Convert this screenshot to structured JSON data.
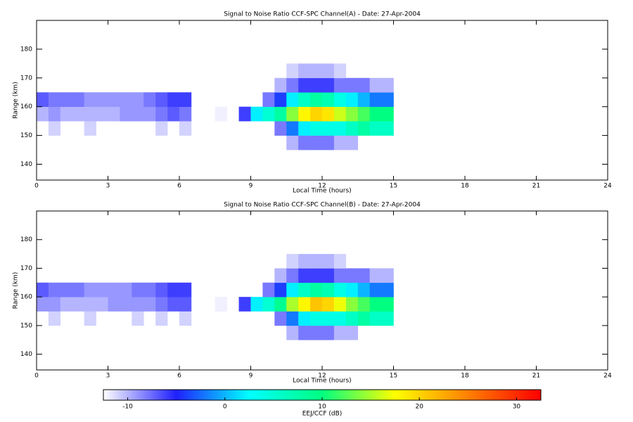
{
  "chart_data": [
    {
      "type": "heatmap",
      "title": "Signal to Noise Ratio CCF-SPC Channel(A) - Date: 27-Apr-2004",
      "xlabel": "Local Time (hours)",
      "ylabel": "Range (km)",
      "xlim": [
        0,
        24
      ],
      "xticks": [
        0,
        3,
        6,
        9,
        12,
        15,
        18,
        21,
        24
      ],
      "ylim": [
        134.5,
        190
      ],
      "yticks": [
        140,
        150,
        160,
        170,
        180
      ],
      "xbins": [
        0,
        0.5,
        1,
        1.5,
        2,
        2.5,
        3,
        3.5,
        4,
        4.5,
        5,
        5.5,
        6,
        6.5,
        7,
        7.5,
        8,
        8.5,
        9,
        9.5,
        10,
        10.5,
        11,
        11.5,
        12,
        12.5,
        13,
        13.5,
        14,
        14.5,
        15
      ],
      "ybins": [
        135,
        140,
        145,
        150,
        155,
        160,
        165,
        170,
        175,
        180,
        185,
        190
      ],
      "z": [
        [
          null,
          null,
          null,
          null,
          null,
          null,
          null,
          null,
          null,
          null,
          null,
          null,
          null,
          null,
          null,
          null,
          null,
          null,
          null,
          null,
          null,
          null,
          null,
          null,
          null,
          null,
          null,
          null,
          null,
          null
        ],
        [
          null,
          null,
          null,
          null,
          null,
          null,
          null,
          null,
          null,
          null,
          null,
          null,
          null,
          null,
          null,
          null,
          null,
          null,
          null,
          null,
          null,
          null,
          null,
          null,
          null,
          null,
          null,
          null,
          null,
          null
        ],
        [
          null,
          null,
          null,
          null,
          null,
          null,
          null,
          null,
          null,
          null,
          null,
          null,
          null,
          null,
          null,
          null,
          null,
          null,
          null,
          null,
          null,
          -10,
          -8,
          -8,
          -8,
          -10,
          -10,
          null,
          null,
          null
        ],
        [
          null,
          -11,
          null,
          null,
          -11,
          null,
          null,
          null,
          null,
          null,
          -11,
          null,
          -11,
          null,
          null,
          null,
          null,
          null,
          null,
          null,
          -8,
          -2,
          2,
          4,
          4,
          4,
          6,
          8,
          6,
          6
        ],
        [
          -10,
          -9,
          -10,
          -10,
          -10,
          -10,
          -10,
          -9,
          -9,
          -9,
          -8,
          -7,
          -8,
          null,
          null,
          -12,
          null,
          -6,
          2,
          5,
          8,
          14,
          18,
          20,
          19,
          16,
          14,
          12,
          10,
          10
        ],
        [
          -7,
          -8,
          -8,
          -8,
          -9,
          -9,
          -9,
          -9,
          -9,
          -8,
          -7,
          -6,
          -6,
          null,
          null,
          null,
          null,
          null,
          null,
          -8,
          -4,
          2,
          6,
          8,
          7,
          4,
          2,
          0,
          -2,
          -2
        ],
        [
          null,
          null,
          null,
          null,
          null,
          null,
          null,
          null,
          null,
          null,
          null,
          null,
          null,
          null,
          null,
          null,
          null,
          null,
          null,
          null,
          -10,
          -8,
          -6,
          -6,
          -6,
          -8,
          -8,
          -8,
          -10,
          -10
        ],
        [
          null,
          null,
          null,
          null,
          null,
          null,
          null,
          null,
          null,
          null,
          null,
          null,
          null,
          null,
          null,
          null,
          null,
          null,
          null,
          null,
          null,
          -11,
          -10,
          -10,
          -10,
          -11,
          null,
          null,
          null,
          null
        ],
        [
          null,
          null,
          null,
          null,
          null,
          null,
          null,
          null,
          null,
          null,
          null,
          null,
          null,
          null,
          null,
          null,
          null,
          null,
          null,
          null,
          null,
          null,
          null,
          null,
          null,
          null,
          null,
          null,
          null,
          null
        ],
        [
          null,
          null,
          null,
          null,
          null,
          null,
          null,
          null,
          null,
          null,
          null,
          null,
          null,
          null,
          null,
          null,
          null,
          null,
          null,
          null,
          null,
          null,
          null,
          null,
          null,
          null,
          null,
          null,
          null,
          null
        ],
        [
          null,
          null,
          null,
          null,
          null,
          null,
          null,
          null,
          null,
          null,
          null,
          null,
          null,
          null,
          null,
          null,
          null,
          null,
          null,
          null,
          null,
          null,
          null,
          null,
          null,
          null,
          null,
          null,
          null,
          null
        ]
      ]
    },
    {
      "type": "heatmap",
      "title": "Signal to Noise Ratio CCF-SPC Channel(B) - Date: 27-Apr-2004",
      "xlabel": "Local Time (hours)",
      "ylabel": "Range (km)",
      "xlim": [
        0,
        24
      ],
      "xticks": [
        0,
        3,
        6,
        9,
        12,
        15,
        18,
        21,
        24
      ],
      "ylim": [
        134.5,
        190
      ],
      "yticks": [
        140,
        150,
        160,
        170,
        180
      ],
      "xbins": [
        0,
        0.5,
        1,
        1.5,
        2,
        2.5,
        3,
        3.5,
        4,
        4.5,
        5,
        5.5,
        6,
        6.5,
        7,
        7.5,
        8,
        8.5,
        9,
        9.5,
        10,
        10.5,
        11,
        11.5,
        12,
        12.5,
        13,
        13.5,
        14,
        14.5,
        15
      ],
      "ybins": [
        135,
        140,
        145,
        150,
        155,
        160,
        165,
        170,
        175,
        180,
        185,
        190
      ],
      "z": [
        [
          null,
          null,
          null,
          null,
          null,
          null,
          null,
          null,
          null,
          null,
          null,
          null,
          null,
          null,
          null,
          null,
          null,
          null,
          null,
          null,
          null,
          null,
          null,
          null,
          null,
          null,
          null,
          null,
          null,
          null
        ],
        [
          null,
          null,
          null,
          null,
          null,
          null,
          null,
          null,
          null,
          null,
          null,
          null,
          null,
          null,
          null,
          null,
          null,
          null,
          null,
          null,
          null,
          null,
          null,
          null,
          null,
          null,
          null,
          null,
          null,
          null
        ],
        [
          null,
          null,
          null,
          null,
          null,
          null,
          null,
          null,
          null,
          null,
          null,
          null,
          null,
          null,
          null,
          null,
          null,
          null,
          null,
          null,
          null,
          -10,
          -8,
          -8,
          -8,
          -10,
          -10,
          null,
          null,
          null
        ],
        [
          null,
          -11,
          null,
          null,
          -11,
          null,
          null,
          null,
          -11,
          null,
          -11,
          null,
          -11,
          null,
          null,
          null,
          null,
          null,
          null,
          null,
          -8,
          -2,
          2,
          4,
          4,
          4,
          6,
          8,
          6,
          6
        ],
        [
          -9,
          -9,
          -10,
          -10,
          -10,
          -10,
          -9,
          -9,
          -9,
          -9,
          -8,
          -7,
          -7,
          null,
          null,
          -12,
          null,
          -6,
          2,
          5,
          9,
          15,
          18,
          21,
          20,
          17,
          14,
          12,
          10,
          10
        ],
        [
          -7,
          -8,
          -8,
          -8,
          -9,
          -9,
          -9,
          -9,
          -8,
          -8,
          -7,
          -6,
          -6,
          null,
          null,
          null,
          null,
          null,
          null,
          -8,
          -4,
          2,
          6,
          8,
          7,
          4,
          2,
          0,
          -2,
          -2
        ],
        [
          null,
          null,
          null,
          null,
          null,
          null,
          null,
          null,
          null,
          null,
          null,
          null,
          null,
          null,
          null,
          null,
          null,
          null,
          null,
          null,
          -10,
          -8,
          -6,
          -6,
          -6,
          -8,
          -8,
          -8,
          -10,
          -10
        ],
        [
          null,
          null,
          null,
          null,
          null,
          null,
          null,
          null,
          null,
          null,
          null,
          null,
          null,
          null,
          null,
          null,
          null,
          null,
          null,
          null,
          null,
          -11,
          -10,
          -10,
          -10,
          -11,
          null,
          null,
          null,
          null
        ],
        [
          null,
          null,
          null,
          null,
          null,
          null,
          null,
          null,
          null,
          null,
          null,
          null,
          null,
          null,
          null,
          null,
          null,
          null,
          null,
          null,
          null,
          null,
          null,
          null,
          null,
          null,
          null,
          null,
          null,
          null
        ],
        [
          null,
          null,
          null,
          null,
          null,
          null,
          null,
          null,
          null,
          null,
          null,
          null,
          null,
          null,
          null,
          null,
          null,
          null,
          null,
          null,
          null,
          null,
          null,
          null,
          null,
          null,
          null,
          null,
          null,
          null
        ],
        [
          null,
          null,
          null,
          null,
          null,
          null,
          null,
          null,
          null,
          null,
          null,
          null,
          null,
          null,
          null,
          null,
          null,
          null,
          null,
          null,
          null,
          null,
          null,
          null,
          null,
          null,
          null,
          null,
          null,
          null
        ]
      ]
    }
  ],
  "colorbar": {
    "label": "EEJ/CCF (dB)",
    "zlim": [
      -12.5,
      32.5
    ],
    "ticks": [
      -10,
      0,
      10,
      20,
      30
    ],
    "colors": [
      "#ffffff",
      "#2020ff",
      "#00ffff",
      "#00ff80",
      "#ffff00",
      "#ff8000",
      "#ff0000"
    ]
  }
}
